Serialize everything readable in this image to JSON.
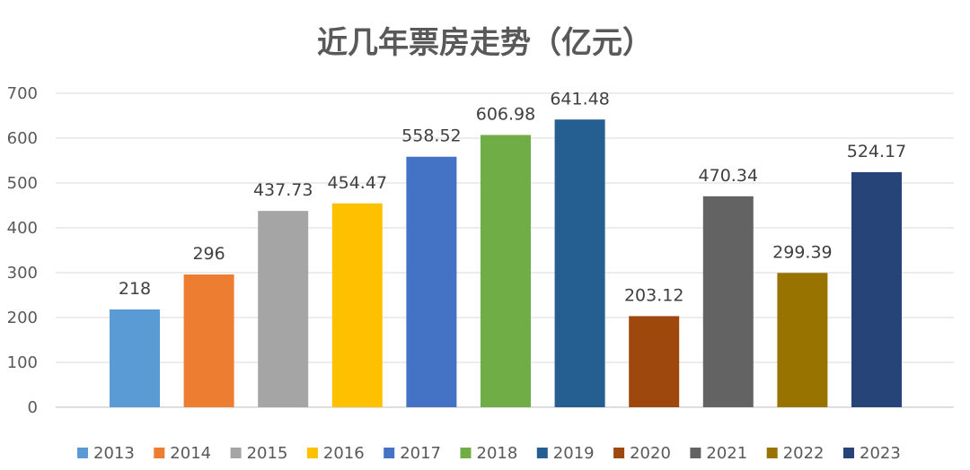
{
  "chart_data": {
    "type": "bar",
    "title": "近几年票房走势（亿元）",
    "categories": [
      "2013",
      "2014",
      "2015",
      "2016",
      "2017",
      "2018",
      "2019",
      "2020",
      "2021",
      "2022",
      "2023"
    ],
    "values": [
      218,
      296,
      437.73,
      454.47,
      558.52,
      606.98,
      641.48,
      203.12,
      470.34,
      299.39,
      524.17
    ],
    "value_labels": [
      "218",
      "296",
      "437.73",
      "454.47",
      "558.52",
      "606.98",
      "641.48",
      "203.12",
      "470.34",
      "299.39",
      "524.17"
    ],
    "colors": [
      "#5B9BD5",
      "#ED7D31",
      "#A5A5A5",
      "#FFC000",
      "#4472C4",
      "#70AD47",
      "#255E91",
      "#9E480E",
      "#636363",
      "#997300",
      "#264478"
    ],
    "ylim": [
      0,
      700
    ],
    "yticks": [
      0,
      100,
      200,
      300,
      400,
      500,
      600,
      700
    ],
    "grid": true,
    "legend_position": "bottom",
    "xlabel": "",
    "ylabel": ""
  }
}
